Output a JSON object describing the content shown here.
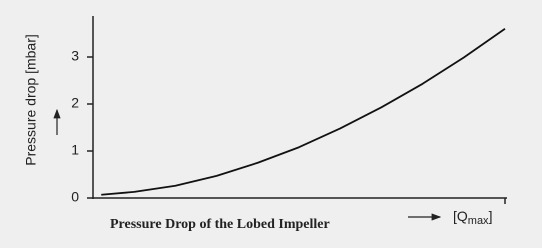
{
  "chart_data": {
    "type": "line",
    "ylabel": "Pressure drop [mbar]",
    "title": "Pressure Drop of the Lobed Impeller",
    "xlabel": {
      "open": "[Q",
      "sub": "max",
      "close": "]"
    },
    "x": [
      0.02,
      0.1,
      0.2,
      0.3,
      0.4,
      0.5,
      0.6,
      0.7,
      0.8,
      0.9,
      1.0
    ],
    "series": [
      {
        "color": "#111111",
        "values": [
          0.07,
          0.13,
          0.26,
          0.47,
          0.75,
          1.08,
          1.48,
          1.93,
          2.43,
          2.99,
          3.6
        ]
      }
    ],
    "xlim": [
      0,
      1
    ],
    "ylim": [
      0,
      3.8
    ],
    "yticks": [
      0,
      1,
      2,
      3
    ]
  }
}
